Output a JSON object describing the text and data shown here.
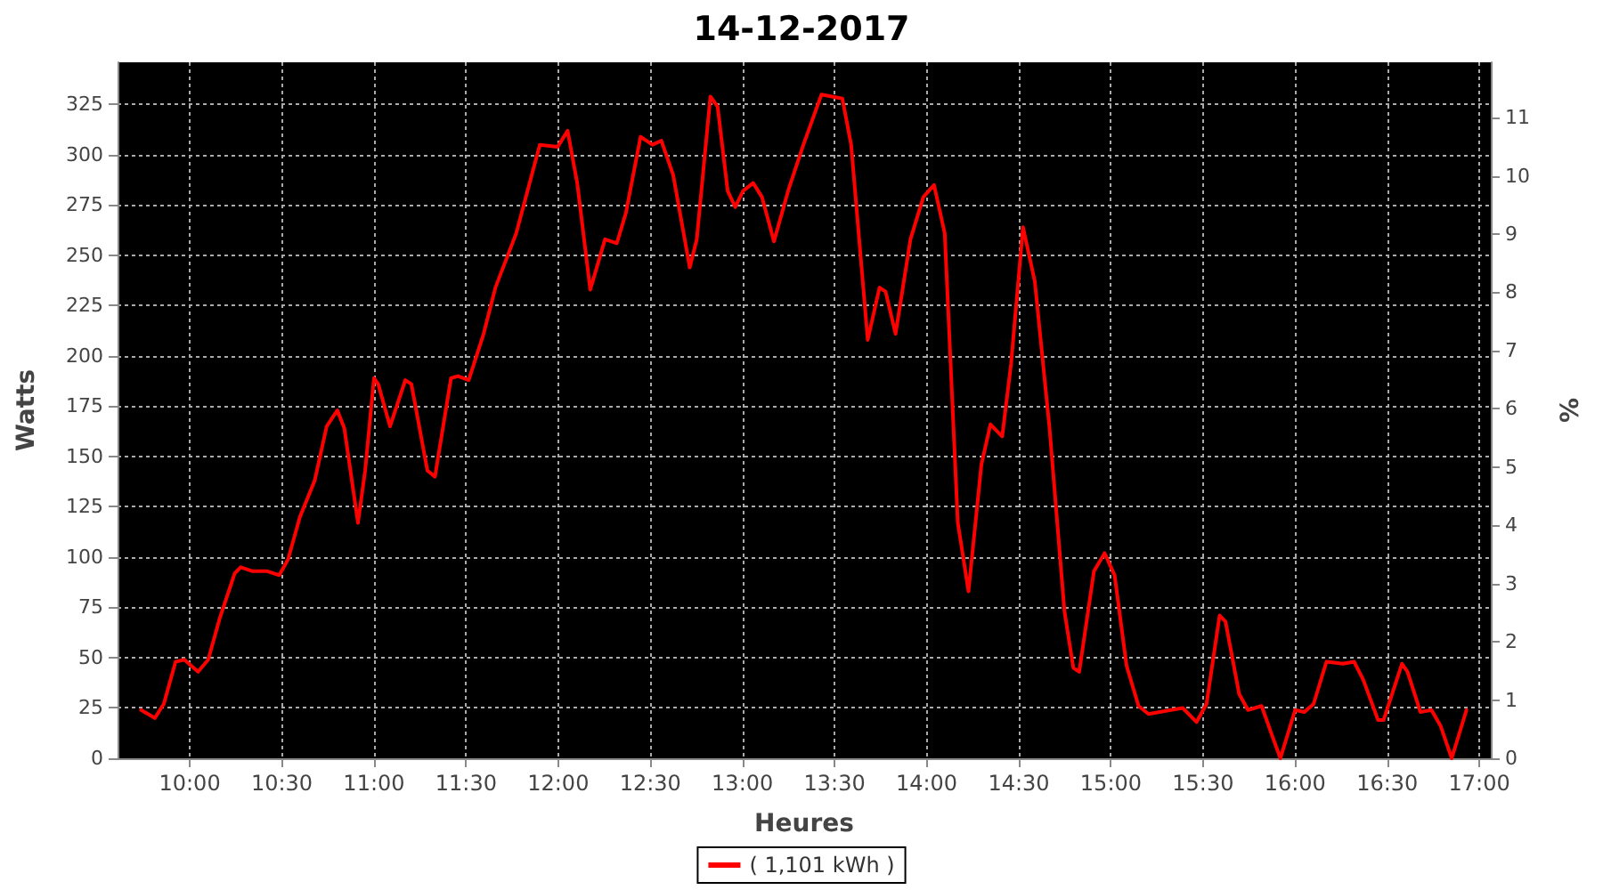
{
  "chart_data": {
    "type": "line",
    "title": "14-12-2017",
    "xlabel": "Heures",
    "ylabel": "Watts",
    "y2label": "%",
    "xlim": [
      9.608,
      17.062
    ],
    "xticks": [
      {
        "value": 10,
        "label": "10:00"
      },
      {
        "value": 10.5,
        "label": "10:30"
      },
      {
        "value": 11,
        "label": "11:00"
      },
      {
        "value": 11.5,
        "label": "11:30"
      },
      {
        "value": 12,
        "label": "12:00"
      },
      {
        "value": 12.5,
        "label": "12:30"
      },
      {
        "value": 13,
        "label": "13:00"
      },
      {
        "value": 13.5,
        "label": "13:30"
      },
      {
        "value": 14,
        "label": "14:00"
      },
      {
        "value": 14.5,
        "label": "14:30"
      },
      {
        "value": 15,
        "label": "15:00"
      },
      {
        "value": 15.5,
        "label": "15:30"
      },
      {
        "value": 16,
        "label": "16:00"
      },
      {
        "value": 16.5,
        "label": "16:30"
      },
      {
        "value": 17,
        "label": "17:00"
      }
    ],
    "ylim": [
      0,
      346
    ],
    "yticks": [
      0,
      25,
      50,
      75,
      100,
      125,
      150,
      175,
      200,
      225,
      250,
      275,
      300,
      325
    ],
    "y2lim": [
      0,
      11.95
    ],
    "y2ticks": [
      0,
      1,
      2,
      3,
      4,
      5,
      6,
      7,
      8,
      9,
      10,
      11
    ],
    "grid": true,
    "legend": "bottom",
    "marker": "none",
    "line_style": "solid",
    "series": [
      {
        "name": "( 1,101 kWh )",
        "color": "#ff0000",
        "x": [
          9.736,
          9.81,
          9.859,
          9.923,
          9.971,
          10.045,
          10.1,
          10.164,
          10.244,
          10.277,
          10.341,
          10.421,
          10.486,
          10.534,
          10.598,
          10.678,
          10.743,
          10.801,
          10.839,
          10.913,
          10.952,
          11.0,
          11.023,
          11.087,
          11.17,
          11.203,
          11.29,
          11.331,
          11.418,
          11.457,
          11.514,
          11.595,
          11.659,
          11.772,
          11.9,
          11.997,
          12.051,
          12.103,
          12.174,
          12.254,
          12.318,
          12.367,
          12.447,
          12.511,
          12.56,
          12.624,
          12.714,
          12.752,
          12.826,
          12.865,
          12.92,
          12.961,
          13.003,
          13.058,
          13.106,
          13.171,
          13.251,
          13.331,
          13.429,
          13.542,
          13.59,
          13.68,
          13.744,
          13.777,
          13.831,
          13.912,
          13.982,
          14.04,
          14.098,
          14.169,
          14.227,
          14.297,
          14.346,
          14.41,
          14.458,
          14.523,
          14.587,
          14.667,
          14.748,
          14.796,
          14.828,
          14.908,
          14.966,
          15.02,
          15.085,
          15.15,
          15.204,
          15.326,
          15.39,
          15.465,
          15.519,
          15.59,
          15.622,
          15.696,
          15.744,
          15.818,
          15.88,
          15.92,
          16.0,
          16.05,
          16.1,
          16.17,
          16.26,
          16.32,
          16.37,
          16.45,
          16.48,
          16.58,
          16.61,
          16.68,
          16.74,
          16.79,
          16.85,
          16.93
        ],
        "values": [
          24,
          20,
          27,
          48,
          49,
          43,
          49,
          70,
          92,
          95,
          93,
          93,
          91,
          99,
          120,
          138,
          165,
          173,
          164,
          117,
          143,
          189,
          186,
          165,
          188,
          186,
          143,
          140,
          189,
          190,
          188,
          211,
          234,
          261,
          305,
          304,
          312,
          286,
          233,
          258,
          256,
          271,
          309,
          305,
          307,
          290,
          244,
          258,
          329,
          324,
          282,
          274,
          282,
          286,
          279,
          257,
          283,
          305,
          330,
          328,
          305,
          208,
          234,
          232,
          211,
          258,
          279,
          285,
          261,
          117,
          83,
          146,
          166,
          160,
          196,
          264,
          237,
          164,
          73,
          45,
          43,
          93,
          102,
          91,
          46,
          26,
          22,
          24,
          25,
          18,
          27,
          71,
          68,
          32,
          24,
          26,
          10,
          0,
          24,
          23,
          27,
          48,
          47,
          48,
          39,
          19,
          19,
          47,
          43,
          23,
          24,
          16,
          0,
          24
        ]
      }
    ]
  }
}
